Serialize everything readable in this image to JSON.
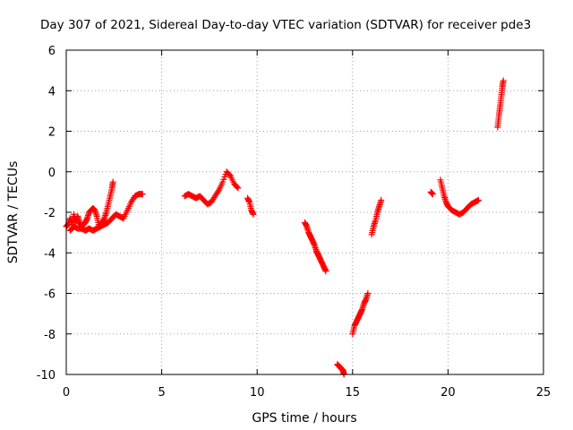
{
  "chart_data": {
    "type": "scatter",
    "title": "Day 307 of 2021, Sidereal Day-to-day VTEC variation (SDTVAR) for receiver pde3",
    "xlabel": "GPS time / hours",
    "ylabel": "SDTVAR / TECUs",
    "xlim": [
      0,
      25
    ],
    "ylim": [
      -10,
      6
    ],
    "xticks": [
      "0",
      "5",
      "10",
      "15",
      "20",
      "25"
    ],
    "yticks": [
      "-10",
      "-8",
      "-6",
      "-4",
      "-2",
      "0",
      "2",
      "4",
      "6"
    ],
    "grid": true,
    "marker": "+",
    "color": "#ff0000",
    "segments": [
      [
        [
          0.0,
          -2.7
        ],
        [
          0.1,
          -2.6
        ],
        [
          0.2,
          -2.3
        ],
        [
          0.3,
          -2.6
        ],
        [
          0.4,
          -2.1
        ],
        [
          0.5,
          -2.5
        ],
        [
          0.6,
          -2.2
        ],
        [
          0.7,
          -2.5
        ],
        [
          0.8,
          -2.7
        ],
        [
          0.9,
          -2.6
        ],
        [
          1.0,
          -2.5
        ],
        [
          1.1,
          -2.3
        ],
        [
          1.2,
          -2.0
        ],
        [
          1.3,
          -1.9
        ],
        [
          1.4,
          -1.8
        ],
        [
          1.5,
          -1.9
        ],
        [
          1.6,
          -2.2
        ],
        [
          1.7,
          -2.6
        ],
        [
          1.8,
          -2.6
        ],
        [
          1.9,
          -2.5
        ],
        [
          2.0,
          -2.3
        ],
        [
          2.1,
          -2.0
        ],
        [
          2.2,
          -1.6
        ],
        [
          2.3,
          -1.2
        ],
        [
          2.4,
          -0.8
        ],
        [
          2.45,
          -0.5
        ]
      ],
      [
        [
          0.2,
          -2.9
        ],
        [
          0.4,
          -2.7
        ],
        [
          0.6,
          -2.8
        ],
        [
          0.8,
          -2.8
        ],
        [
          1.0,
          -2.9
        ],
        [
          1.2,
          -2.8
        ],
        [
          1.4,
          -2.9
        ],
        [
          1.6,
          -2.8
        ],
        [
          1.8,
          -2.7
        ],
        [
          2.0,
          -2.6
        ],
        [
          2.2,
          -2.5
        ],
        [
          2.4,
          -2.3
        ],
        [
          2.6,
          -2.1
        ],
        [
          2.8,
          -2.2
        ],
        [
          3.0,
          -2.3
        ],
        [
          3.2,
          -1.9
        ],
        [
          3.4,
          -1.5
        ],
        [
          3.6,
          -1.2
        ],
        [
          3.8,
          -1.1
        ],
        [
          4.0,
          -1.1
        ]
      ],
      [
        [
          6.2,
          -1.2
        ],
        [
          6.4,
          -1.1
        ],
        [
          6.6,
          -1.2
        ],
        [
          6.8,
          -1.3
        ],
        [
          7.0,
          -1.2
        ],
        [
          7.2,
          -1.4
        ],
        [
          7.4,
          -1.6
        ],
        [
          7.6,
          -1.5
        ],
        [
          7.8,
          -1.2
        ],
        [
          8.0,
          -0.9
        ],
        [
          8.2,
          -0.5
        ],
        [
          8.4,
          0.0
        ],
        [
          8.6,
          -0.2
        ],
        [
          8.8,
          -0.6
        ],
        [
          9.0,
          -0.8
        ]
      ],
      [
        [
          9.5,
          -1.3
        ],
        [
          9.6,
          -1.5
        ],
        [
          9.7,
          -1.9
        ],
        [
          9.8,
          -2.1
        ]
      ],
      [
        [
          12.5,
          -2.5
        ],
        [
          12.6,
          -2.7
        ],
        [
          12.7,
          -3.0
        ],
        [
          12.8,
          -3.2
        ],
        [
          12.9,
          -3.4
        ],
        [
          13.0,
          -3.6
        ],
        [
          13.1,
          -3.9
        ],
        [
          13.2,
          -4.1
        ],
        [
          13.3,
          -4.3
        ],
        [
          13.4,
          -4.5
        ],
        [
          13.5,
          -4.7
        ],
        [
          13.6,
          -4.9
        ]
      ],
      [
        [
          14.2,
          -9.5
        ],
        [
          14.3,
          -9.6
        ],
        [
          14.4,
          -9.7
        ],
        [
          14.5,
          -9.8
        ],
        [
          14.55,
          -10.0
        ]
      ],
      [
        [
          15.0,
          -8.0
        ],
        [
          15.1,
          -7.6
        ],
        [
          15.2,
          -7.4
        ],
        [
          15.3,
          -7.2
        ],
        [
          15.4,
          -7.0
        ],
        [
          15.5,
          -6.8
        ],
        [
          15.6,
          -6.5
        ],
        [
          15.7,
          -6.3
        ],
        [
          15.8,
          -6.0
        ]
      ],
      [
        [
          16.0,
          -3.1
        ],
        [
          16.1,
          -2.7
        ],
        [
          16.2,
          -2.4
        ],
        [
          16.3,
          -2.0
        ],
        [
          16.4,
          -1.7
        ],
        [
          16.5,
          -1.4
        ]
      ],
      [
        [
          19.1,
          -1.0
        ],
        [
          19.2,
          -1.1
        ]
      ],
      [
        [
          19.6,
          -0.4
        ],
        [
          19.7,
          -0.8
        ],
        [
          19.8,
          -1.2
        ],
        [
          19.9,
          -1.5
        ],
        [
          20.0,
          -1.7
        ],
        [
          20.2,
          -1.9
        ],
        [
          20.4,
          -2.0
        ],
        [
          20.6,
          -2.1
        ],
        [
          20.8,
          -2.0
        ],
        [
          21.0,
          -1.8
        ],
        [
          21.2,
          -1.6
        ],
        [
          21.4,
          -1.5
        ],
        [
          21.6,
          -1.4
        ]
      ],
      [
        [
          22.6,
          2.2
        ],
        [
          22.65,
          2.6
        ],
        [
          22.7,
          3.0
        ],
        [
          22.75,
          3.4
        ],
        [
          22.8,
          3.8
        ],
        [
          22.85,
          4.2
        ],
        [
          22.9,
          4.5
        ]
      ]
    ]
  }
}
